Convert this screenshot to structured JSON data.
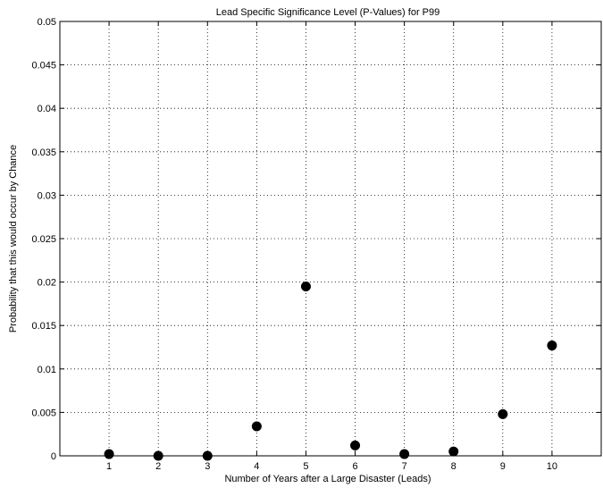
{
  "chart_data": {
    "type": "scatter",
    "title": "Lead Specific Significance Level (P-Values) for P99",
    "xlabel": "Number of Years after a Large Disaster (Leads)",
    "ylabel": "Probability that this would occur by Chance",
    "xlim": [
      0,
      11
    ],
    "ylim": [
      0,
      0.05
    ],
    "xticks": [
      "1",
      "2",
      "3",
      "4",
      "5",
      "6",
      "7",
      "8",
      "9",
      "10"
    ],
    "yticks": [
      "0",
      "0.005",
      "0.01",
      "0.015",
      "0.02",
      "0.025",
      "0.03",
      "0.035",
      "0.04",
      "0.045",
      "0.05"
    ],
    "grid": true,
    "marker_color": "#000000",
    "points": [
      {
        "x": 1,
        "y": 0.0002
      },
      {
        "x": 2,
        "y": 0.0
      },
      {
        "x": 3,
        "y": 0.0
      },
      {
        "x": 4,
        "y": 0.0034
      },
      {
        "x": 5,
        "y": 0.0195
      },
      {
        "x": 6,
        "y": 0.0012
      },
      {
        "x": 7,
        "y": 0.0002
      },
      {
        "x": 8,
        "y": 0.0005
      },
      {
        "x": 9,
        "y": 0.0048
      },
      {
        "x": 10,
        "y": 0.0127
      }
    ]
  }
}
